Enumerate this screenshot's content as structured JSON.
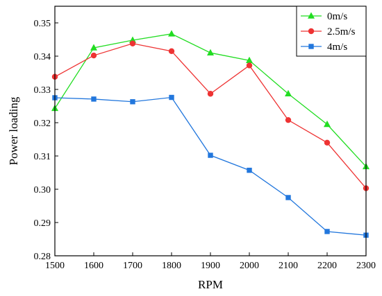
{
  "chart_data": {
    "type": "line",
    "xlabel": "RPM",
    "ylabel": "Power loading",
    "xlim": [
      1500,
      2300
    ],
    "ylim": [
      0.28,
      0.355
    ],
    "x_ticks": [
      1500,
      1600,
      1700,
      1800,
      1900,
      2000,
      2100,
      2200,
      2300
    ],
    "y_ticks": [
      "0.28",
      "0.29",
      "0.30",
      "0.31",
      "0.32",
      "0.33",
      "0.34",
      "0.35"
    ],
    "x": [
      1500,
      1600,
      1700,
      1800,
      1900,
      2000,
      2100,
      2200,
      2300
    ],
    "grid": false,
    "legend_position": "top-right",
    "series": [
      {
        "name": "0m/s",
        "color": "#22dd22",
        "marker": "triangle",
        "values": [
          0.3243,
          0.3425,
          0.3448,
          0.3467,
          0.341,
          0.3387,
          0.3287,
          0.3195,
          0.3068
        ]
      },
      {
        "name": "2.5m/s",
        "color": "#ee3333",
        "marker": "circle",
        "values": [
          0.3338,
          0.3402,
          0.3438,
          0.3415,
          0.3287,
          0.3372,
          0.3208,
          0.314,
          0.3003
        ]
      },
      {
        "name": "4m/s",
        "color": "#2277dd",
        "marker": "square",
        "values": [
          0.3275,
          0.3271,
          0.3263,
          0.3276,
          0.3102,
          0.3057,
          0.2975,
          0.2873,
          0.2862
        ]
      }
    ]
  }
}
